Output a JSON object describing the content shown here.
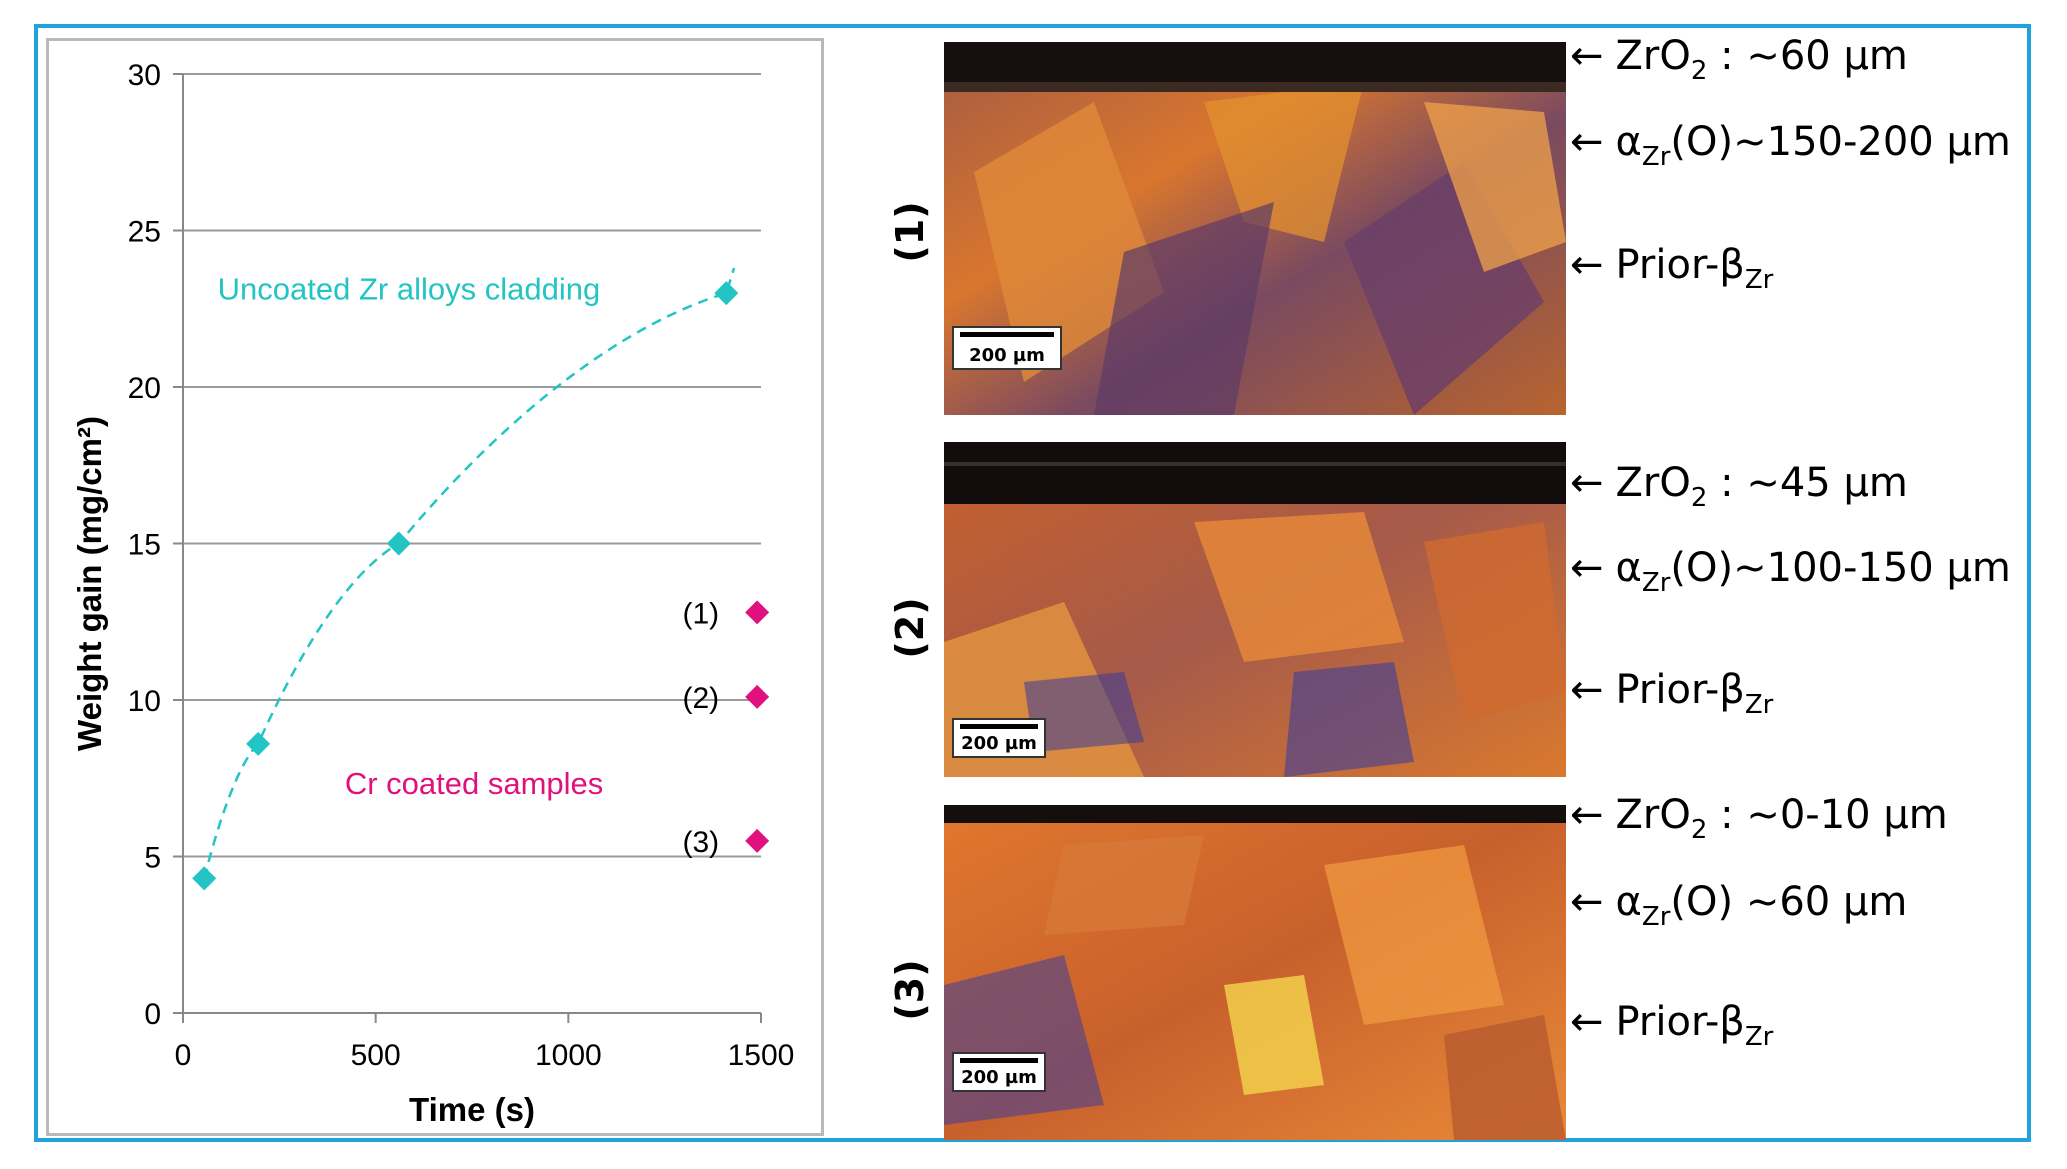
{
  "chart_data": {
    "type": "scatter",
    "xlabel": "Time (s)",
    "ylabel": "Weight gain (mg/cm²)",
    "xlim": [
      0,
      1500
    ],
    "ylim": [
      0,
      30
    ],
    "xticks": [
      0,
      500,
      1000,
      1500
    ],
    "yticks": [
      0,
      5,
      10,
      15,
      20,
      25,
      30
    ],
    "grid": "horizontal",
    "series": [
      {
        "name": "Uncoated Zr alloys cladding",
        "color": "#22c4c4",
        "marker": "diamond",
        "trendline": "dashed",
        "points": [
          {
            "x": 55,
            "y": 4.3
          },
          {
            "x": 195,
            "y": 8.6
          },
          {
            "x": 560,
            "y": 15.0
          },
          {
            "x": 1410,
            "y": 23.0
          }
        ]
      },
      {
        "name": "Cr coated samples",
        "color": "#e0117f",
        "marker": "diamond",
        "points": [
          {
            "x": 1490,
            "y": 12.8,
            "label": "(1)"
          },
          {
            "x": 1490,
            "y": 10.1,
            "label": "(2)"
          },
          {
            "x": 1490,
            "y": 5.5,
            "label": "(3)"
          }
        ]
      }
    ]
  },
  "micrographs": [
    {
      "label": "(1)",
      "scale_bar": "200 µm",
      "annotations": [
        {
          "arrow": "←",
          "text": "ZrO",
          "sub": "2",
          "rest": " : ~60 µm"
        },
        {
          "arrow": "←",
          "text": "α",
          "sub": "Zr",
          "rest": "(O)~150-200 µm"
        },
        {
          "arrow": "←",
          "text": "Prior-β",
          "sub": "Zr",
          "rest": ""
        }
      ]
    },
    {
      "label": "(2)",
      "scale_bar": "200 µm",
      "annotations": [
        {
          "arrow": "←",
          "text": "ZrO",
          "sub": "2",
          "rest": " : ~45 µm"
        },
        {
          "arrow": "←",
          "text": "α",
          "sub": "Zr",
          "rest": "(O)~100-150 µm"
        },
        {
          "arrow": "←",
          "text": "Prior-β",
          "sub": "Zr",
          "rest": ""
        }
      ]
    },
    {
      "label": "(3)",
      "scale_bar": "200 µm",
      "annotations": [
        {
          "arrow": "←",
          "text": "ZrO",
          "sub": "2",
          "rest": " : ~0-10 µm"
        },
        {
          "arrow": "←",
          "text": "α",
          "sub": "Zr",
          "rest": "(O) ~60 µm"
        },
        {
          "arrow": "←",
          "text": "Prior-β",
          "sub": "Zr",
          "rest": ""
        }
      ]
    }
  ]
}
